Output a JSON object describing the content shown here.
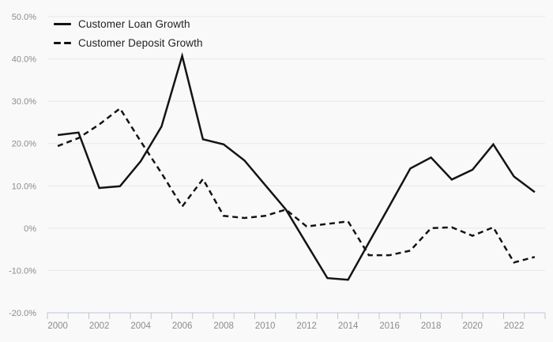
{
  "chart_data": {
    "type": "line",
    "title": "",
    "xlabel": "",
    "ylabel": "",
    "x": [
      2000,
      2001,
      2002,
      2003,
      2004,
      2005,
      2006,
      2007,
      2008,
      2009,
      2010,
      2011,
      2012,
      2013,
      2014,
      2015,
      2016,
      2017,
      2018,
      2019,
      2020,
      2021,
      2022,
      2023
    ],
    "series": [
      {
        "name": "Customer Loan Growth",
        "style": "solid",
        "values": [
          22.0,
          22.6,
          9.5,
          9.9,
          15.8,
          24.0,
          40.7,
          21.0,
          19.8,
          16.0,
          10.2,
          4.4,
          -3.7,
          -11.8,
          -12.2,
          -3.4,
          5.3,
          14.1,
          16.7,
          11.5,
          13.8,
          19.8,
          12.2,
          8.5
        ]
      },
      {
        "name": "Customer Deposit Growth",
        "style": "dashed",
        "values": [
          19.4,
          21.3,
          24.5,
          28.3,
          20.5,
          13.0,
          5.1,
          11.6,
          2.9,
          2.4,
          2.9,
          4.4,
          0.4,
          1.0,
          1.6,
          -6.4,
          -6.4,
          -5.3,
          0.0,
          0.2,
          -1.8,
          0.2,
          -8.1,
          -6.8
        ]
      }
    ],
    "ylim": [
      -20,
      50
    ],
    "y_ticks": [
      {
        "value": 50,
        "label": "50.0%"
      },
      {
        "value": 40,
        "label": "40.0%"
      },
      {
        "value": 30,
        "label": "30.0%"
      },
      {
        "value": 20,
        "label": "20.0%"
      },
      {
        "value": 10,
        "label": "10.0%"
      },
      {
        "value": 0,
        "label": "0%"
      },
      {
        "value": -10,
        "label": "-10.0%"
      },
      {
        "value": -20,
        "label": "-20.0%"
      }
    ],
    "x_tick_labels": [
      "2000",
      "2002",
      "2004",
      "2006",
      "2008",
      "2010",
      "2012",
      "2014",
      "2016",
      "2018",
      "2020",
      "2022"
    ],
    "grid": true,
    "legend_position": "top-left",
    "colors": {
      "background": "#f9f9f9",
      "gridline": "#e8e8e8",
      "axis_line": "#bcc5d6",
      "axis_text": "#8c8c8c",
      "series": "#141414",
      "legend_text": "#1f1f1f"
    }
  }
}
